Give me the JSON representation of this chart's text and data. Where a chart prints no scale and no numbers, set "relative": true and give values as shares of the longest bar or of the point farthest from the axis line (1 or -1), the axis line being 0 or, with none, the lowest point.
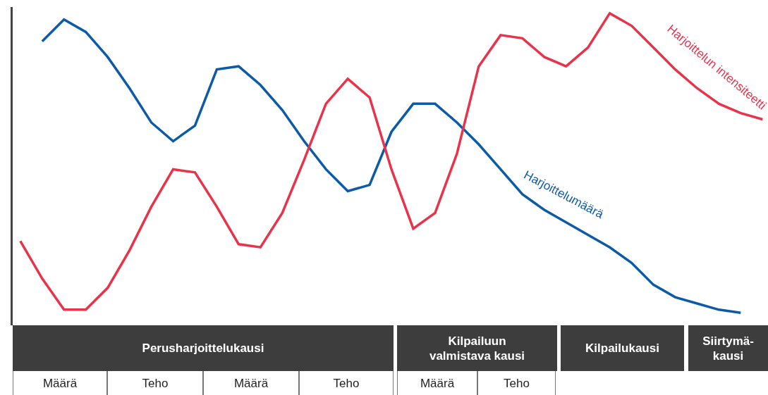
{
  "chart_data": {
    "type": "line",
    "relative": true,
    "legend": false,
    "grid": false,
    "marker": "none",
    "line_style": "solid",
    "categories": [
      null,
      null,
      null,
      null,
      null,
      null,
      null,
      null,
      null,
      null,
      null,
      null,
      null,
      null,
      null,
      null,
      null,
      null,
      null,
      null,
      null,
      null,
      null,
      null,
      null,
      null,
      null,
      null,
      null,
      null,
      null,
      null,
      null,
      null,
      null
    ],
    "series": [
      {
        "name": "Harjoittelumäärä",
        "color": "#0d5aa7",
        "values": [
          null,
          0.91,
          0.98,
          0.94,
          0.86,
          0.76,
          0.65,
          0.59,
          0.64,
          0.82,
          0.83,
          0.77,
          0.69,
          0.59,
          0.5,
          0.43,
          0.45,
          0.62,
          0.71,
          0.71,
          0.65,
          0.58,
          0.5,
          0.42,
          0.37,
          0.33,
          0.29,
          0.25,
          0.2,
          0.13,
          0.09,
          0.07,
          0.05,
          0.04,
          null
        ]
      },
      {
        "name": "Harjoittelun intensiteetti",
        "color": "#e8334a",
        "values": [
          0.27,
          0.15,
          0.05,
          0.05,
          0.12,
          0.24,
          0.38,
          0.5,
          0.49,
          0.38,
          0.26,
          0.25,
          0.36,
          0.53,
          0.71,
          0.79,
          0.73,
          0.5,
          0.31,
          0.36,
          0.55,
          0.83,
          0.93,
          0.92,
          0.86,
          0.83,
          0.89,
          1.0,
          0.96,
          0.89,
          0.82,
          0.76,
          0.71,
          0.68,
          0.66
        ]
      }
    ],
    "annotations": [
      "Perusharjoittelukausi",
      "Kilpailuun\nvalmistava kausi",
      "Kilpailukausi",
      "Siirtymä-\nkausi",
      "Määrä",
      "Teho",
      "Määrä",
      "Teho",
      "Määrä",
      "Teho"
    ]
  }
}
